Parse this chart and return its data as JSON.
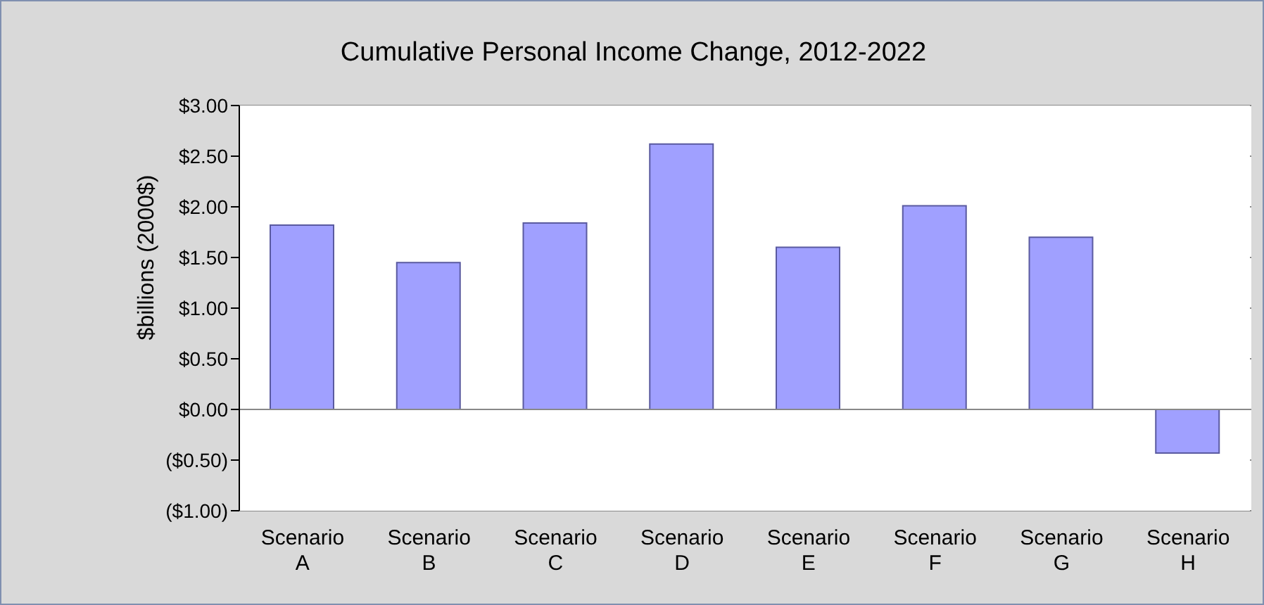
{
  "chart_data": {
    "type": "bar",
    "title": "Cumulative Personal Income Change, 2012-2022",
    "ylabel": "$billions (2000$)",
    "categories": [
      "Scenario A",
      "Scenario B",
      "Scenario C",
      "Scenario D",
      "Scenario E",
      "Scenario F",
      "Scenario G",
      "Scenario H"
    ],
    "values": [
      1.82,
      1.45,
      1.84,
      2.62,
      1.6,
      2.01,
      1.7,
      -0.43
    ],
    "color": "#a0a0ff",
    "ylim": [
      -1,
      3
    ],
    "yticks": [
      {
        "value": -1,
        "label": "($1.00)"
      },
      {
        "value": -0.5,
        "label": "($0.50)"
      },
      {
        "value": 0,
        "label": "$0.00"
      },
      {
        "value": 0.5,
        "label": "$0.50"
      },
      {
        "value": 1,
        "label": "$1.00"
      },
      {
        "value": 1.5,
        "label": "$1.50"
      },
      {
        "value": 2,
        "label": "$2.00"
      },
      {
        "value": 2.5,
        "label": "$2.50"
      },
      {
        "value": 3,
        "label": "$3.00"
      }
    ],
    "grid": "y"
  }
}
